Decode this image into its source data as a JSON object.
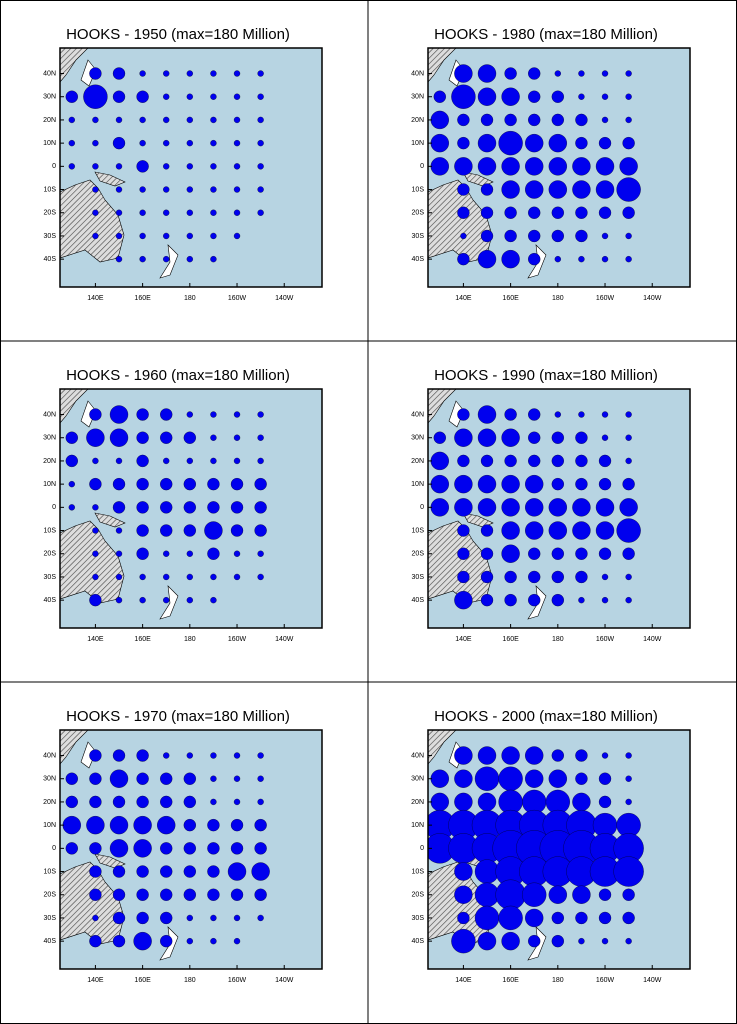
{
  "panels": [
    {
      "title": "HOOKS - 1950 (max=180 Million)",
      "values": [
        [
          0,
          2,
          2,
          1,
          1,
          1,
          1,
          1,
          1
        ],
        [
          2,
          4,
          2,
          2,
          1,
          1,
          1,
          1,
          1
        ],
        [
          1,
          1,
          1,
          1,
          1,
          1,
          1,
          1,
          1
        ],
        [
          1,
          1,
          2,
          1,
          1,
          1,
          1,
          1,
          1
        ],
        [
          1,
          1,
          1,
          2,
          1,
          1,
          1,
          1,
          1
        ],
        [
          0,
          1,
          1,
          1,
          1,
          1,
          1,
          1,
          1
        ],
        [
          0,
          1,
          1,
          1,
          1,
          1,
          1,
          1,
          1
        ],
        [
          0,
          1,
          1,
          1,
          1,
          1,
          1,
          1,
          0
        ],
        [
          0,
          0,
          1,
          1,
          1,
          1,
          1,
          0,
          0
        ]
      ]
    },
    {
      "title": "HOOKS - 1980 (max=180 Million)",
      "values": [
        [
          0,
          3,
          3,
          2,
          2,
          1,
          1,
          1,
          1
        ],
        [
          2,
          4,
          3,
          3,
          2,
          2,
          1,
          1,
          1
        ],
        [
          3,
          2,
          2,
          2,
          2,
          2,
          2,
          1,
          1
        ],
        [
          3,
          2,
          3,
          4,
          3,
          3,
          2,
          2,
          2
        ],
        [
          3,
          3,
          3,
          3,
          3,
          3,
          3,
          3,
          3
        ],
        [
          0,
          2,
          2,
          3,
          3,
          3,
          3,
          3,
          4
        ],
        [
          0,
          2,
          2,
          2,
          2,
          2,
          2,
          2,
          2
        ],
        [
          0,
          1,
          2,
          2,
          2,
          2,
          2,
          1,
          1
        ],
        [
          0,
          2,
          3,
          3,
          2,
          1,
          1,
          1,
          1
        ]
      ]
    },
    {
      "title": "HOOKS - 1960 (max=180 Million)",
      "values": [
        [
          0,
          2,
          3,
          2,
          2,
          1,
          1,
          1,
          1
        ],
        [
          2,
          3,
          3,
          2,
          2,
          2,
          1,
          1,
          1
        ],
        [
          2,
          1,
          1,
          2,
          1,
          1,
          1,
          1,
          1
        ],
        [
          1,
          2,
          2,
          2,
          2,
          2,
          2,
          2,
          2
        ],
        [
          1,
          1,
          2,
          2,
          2,
          2,
          2,
          2,
          2
        ],
        [
          0,
          1,
          1,
          2,
          2,
          2,
          3,
          2,
          2
        ],
        [
          0,
          1,
          1,
          2,
          1,
          1,
          2,
          1,
          1
        ],
        [
          0,
          1,
          1,
          1,
          1,
          1,
          1,
          1,
          1
        ],
        [
          0,
          2,
          1,
          1,
          1,
          1,
          1,
          0,
          0
        ]
      ]
    },
    {
      "title": "HOOKS - 1990 (max=180 Million)",
      "values": [
        [
          0,
          2,
          3,
          2,
          2,
          1,
          1,
          1,
          1
        ],
        [
          2,
          3,
          3,
          3,
          2,
          2,
          2,
          1,
          1
        ],
        [
          3,
          2,
          2,
          2,
          2,
          2,
          2,
          2,
          1
        ],
        [
          3,
          3,
          3,
          3,
          3,
          2,
          2,
          2,
          2
        ],
        [
          3,
          3,
          3,
          3,
          3,
          3,
          3,
          3,
          3
        ],
        [
          0,
          2,
          2,
          3,
          3,
          3,
          3,
          3,
          4
        ],
        [
          0,
          2,
          2,
          3,
          2,
          2,
          2,
          2,
          2
        ],
        [
          0,
          2,
          2,
          2,
          2,
          2,
          2,
          1,
          1
        ],
        [
          0,
          3,
          2,
          2,
          2,
          2,
          1,
          1,
          1
        ]
      ]
    },
    {
      "title": "HOOKS - 1970 (max=180 Million)",
      "values": [
        [
          0,
          2,
          2,
          2,
          1,
          1,
          1,
          1,
          1
        ],
        [
          2,
          2,
          3,
          2,
          2,
          2,
          1,
          1,
          1
        ],
        [
          2,
          2,
          2,
          2,
          2,
          2,
          1,
          1,
          1
        ],
        [
          3,
          3,
          3,
          3,
          3,
          2,
          2,
          2,
          2
        ],
        [
          2,
          2,
          3,
          3,
          2,
          2,
          2,
          2,
          2
        ],
        [
          0,
          2,
          2,
          2,
          2,
          2,
          2,
          3,
          3
        ],
        [
          0,
          2,
          2,
          2,
          2,
          2,
          2,
          2,
          2
        ],
        [
          0,
          1,
          2,
          2,
          2,
          1,
          1,
          1,
          1
        ],
        [
          0,
          2,
          2,
          3,
          2,
          1,
          1,
          1,
          0
        ]
      ]
    },
    {
      "title": "HOOKS - 2000 (max=180 Million)",
      "values": [
        [
          0,
          3,
          3,
          3,
          3,
          2,
          2,
          1,
          1
        ],
        [
          3,
          3,
          4,
          4,
          3,
          3,
          2,
          2,
          1
        ],
        [
          3,
          3,
          3,
          4,
          4,
          4,
          3,
          2,
          1
        ],
        [
          5,
          5,
          5,
          5,
          5,
          5,
          5,
          4,
          4
        ],
        [
          5,
          5,
          5,
          6,
          6,
          6,
          6,
          5,
          5
        ],
        [
          0,
          3,
          4,
          5,
          5,
          5,
          5,
          5,
          5
        ],
        [
          0,
          3,
          4,
          5,
          4,
          3,
          3,
          2,
          2
        ],
        [
          0,
          2,
          4,
          4,
          3,
          2,
          2,
          2,
          2
        ],
        [
          0,
          4,
          3,
          3,
          2,
          2,
          1,
          1,
          1
        ]
      ]
    }
  ],
  "axes": {
    "xlim": [
      125,
      236
    ],
    "ylim": [
      -52,
      51
    ],
    "lat_ticks": [
      {
        "value": 40,
        "label": "40N"
      },
      {
        "value": 30,
        "label": "30N"
      },
      {
        "value": 20,
        "label": "20N"
      },
      {
        "value": 10,
        "label": "10N"
      },
      0,
      {
        "value": -10,
        "label": "10S"
      },
      {
        "value": -20,
        "label": "20S"
      },
      {
        "value": -30,
        "label": "30S"
      },
      {
        "value": -40,
        "label": "40S"
      }
    ],
    "lon_ticks": [
      {
        "value": 140,
        "label": "140E"
      },
      {
        "value": 160,
        "label": "160E"
      },
      180,
      {
        "value": 200,
        "label": "160W"
      },
      {
        "value": 220,
        "label": "140W"
      }
    ],
    "ocean_color": "#b7d4e2",
    "dot_color": "#0000ee"
  }
}
